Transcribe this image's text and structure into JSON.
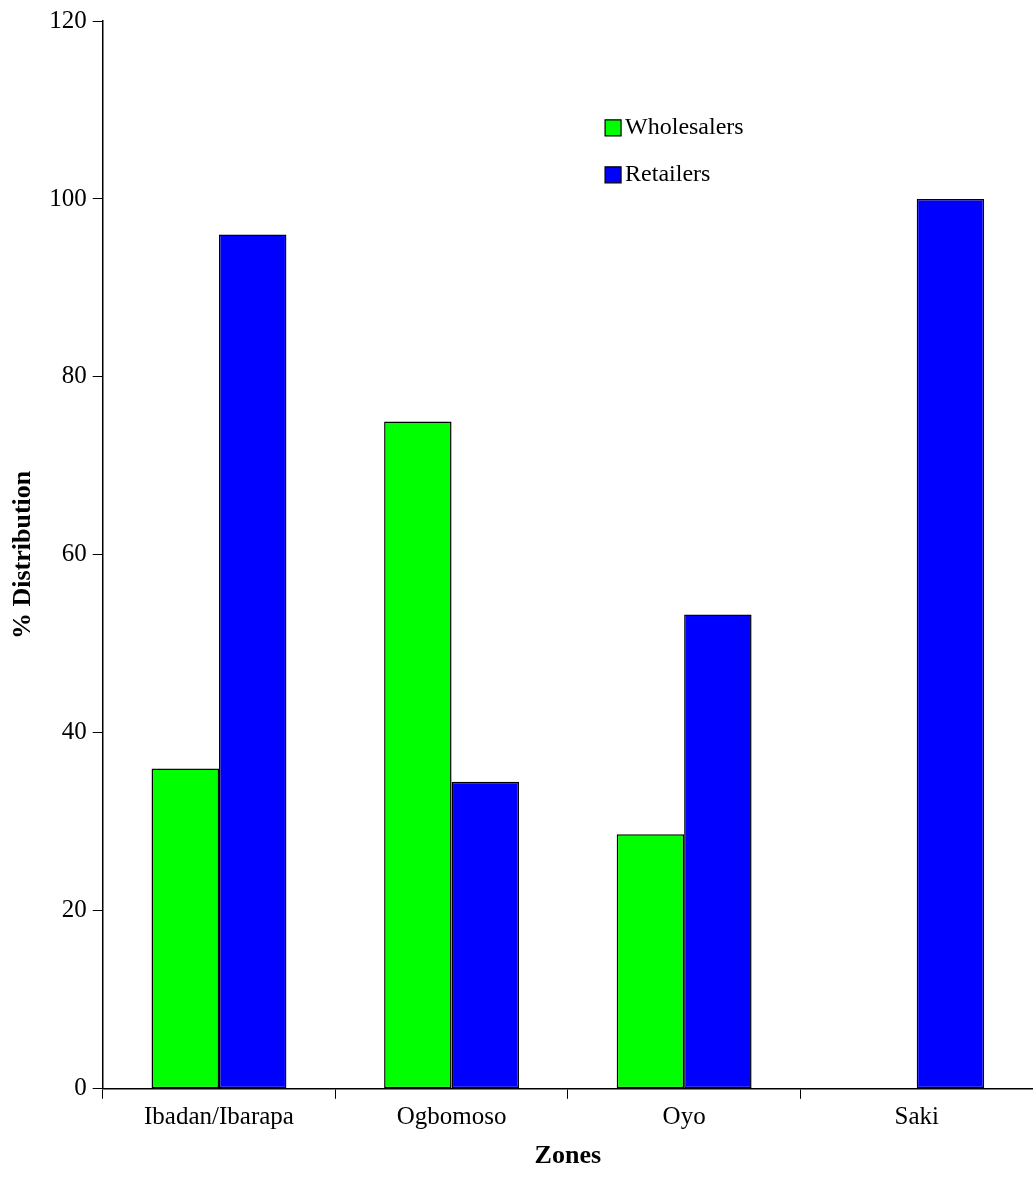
{
  "chart_data": {
    "type": "bar",
    "xlabel": "Zones",
    "ylabel": "% Distribution",
    "categories": [
      "Ibadan/Ibarapa",
      "Ogbomoso",
      "Oyo",
      "Saki"
    ],
    "series": [
      {
        "name": "Wholesalers",
        "color": "#00ff00",
        "values": [
          36,
          75,
          28.6,
          0
        ]
      },
      {
        "name": "Retailers",
        "color": "#0000ff",
        "values": [
          96,
          34.5,
          53.3,
          100
        ]
      }
    ],
    "ylim": [
      0,
      120
    ],
    "yticks": [
      0,
      20,
      40,
      60,
      80,
      100,
      120
    ],
    "grid": false,
    "legend": "top right"
  }
}
